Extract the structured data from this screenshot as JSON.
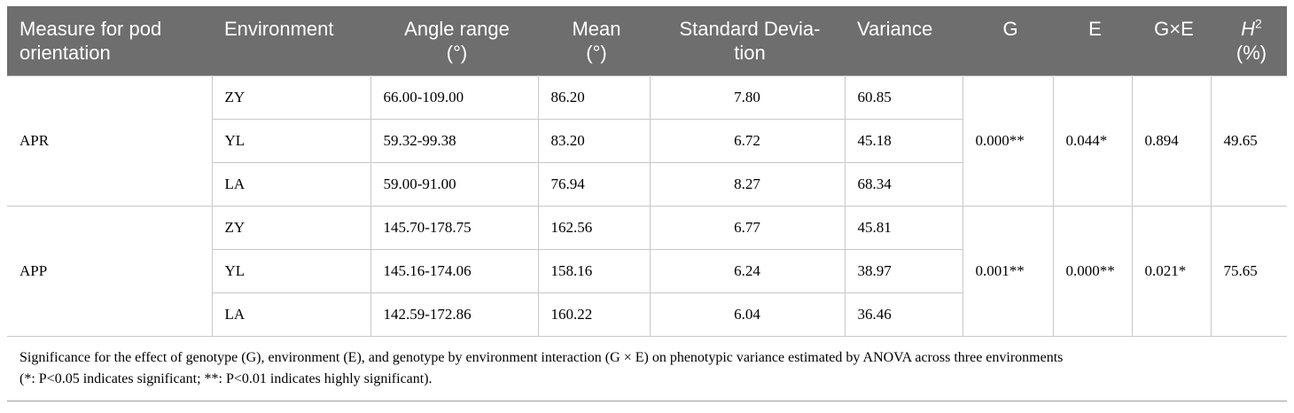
{
  "table": {
    "headers": [
      {
        "line1": "Measure for pod",
        "line2": "orientation"
      },
      {
        "line1": "Environment",
        "line2": ""
      },
      {
        "line1": "Angle range",
        "line2": "(°)"
      },
      {
        "line1": "Mean",
        "line2": "(°)"
      },
      {
        "line1": "Standard Devia-",
        "line2": "tion"
      },
      {
        "line1": "Variance",
        "line2": ""
      },
      {
        "line1": "G",
        "line2": ""
      },
      {
        "line1": "E",
        "line2": ""
      },
      {
        "line1": "G×E",
        "line2": ""
      },
      {
        "line1_italic": "H",
        "line1_sup": "2",
        "line2": "(%)"
      }
    ],
    "groups": [
      {
        "measure": "APR",
        "G": "0.000**",
        "E": "0.044*",
        "GxE": "0.894",
        "H2": "49.65",
        "rows": [
          {
            "env": "ZY",
            "range": "66.00-109.00",
            "mean": "86.20",
            "sd": "7.80",
            "variance": "60.85"
          },
          {
            "env": "YL",
            "range": "59.32-99.38",
            "mean": "83.20",
            "sd": "6.72",
            "variance": "45.18"
          },
          {
            "env": "LA",
            "range": "59.00-91.00",
            "mean": "76.94",
            "sd": "8.27",
            "variance": "68.34"
          }
        ]
      },
      {
        "measure": "APP",
        "G": "0.001**",
        "E": "0.000**",
        "GxE": "0.021*",
        "H2": "75.65",
        "rows": [
          {
            "env": "ZY",
            "range": "145.70-178.75",
            "mean": "162.56",
            "sd": "6.77",
            "variance": "45.81"
          },
          {
            "env": "YL",
            "range": "145.16-174.06",
            "mean": "158.16",
            "sd": "6.24",
            "variance": "38.97"
          },
          {
            "env": "LA",
            "range": "142.59-172.86",
            "mean": "160.22",
            "sd": "6.04",
            "variance": "36.46"
          }
        ]
      }
    ],
    "footnote_line1": "Significance for the effect of genotype (G), environment (E), and genotype by environment interaction (G × E) on phenotypic variance estimated by ANOVA across three environments",
    "footnote_line2": "(*: P<0.05 indicates significant; **: P<0.01 indicates highly significant)."
  }
}
